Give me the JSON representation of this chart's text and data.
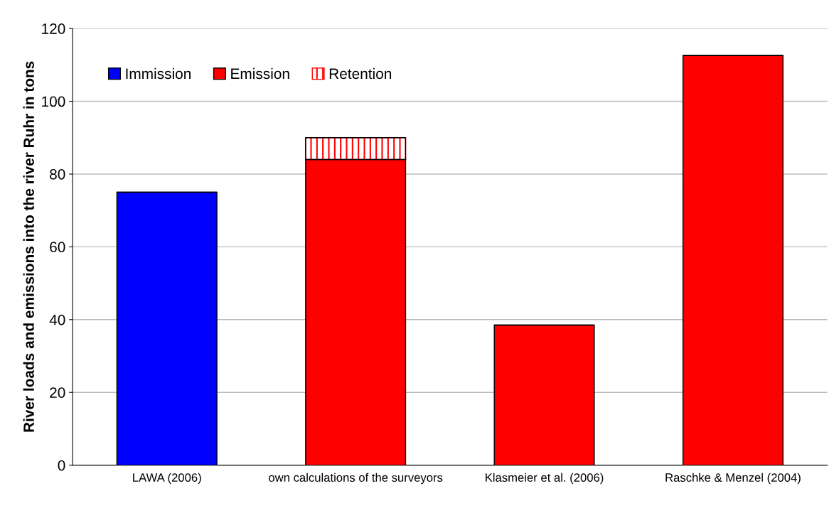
{
  "chart_data": {
    "type": "bar",
    "stacked": true,
    "ylabel": "River loads and emissions into the river Ruhr in tons",
    "categories": [
      "LAWA (2006)",
      "own calculations of the surveyors",
      "Klasmeier et al. (2006)",
      "Raschke & Menzel (2004)"
    ],
    "series": [
      {
        "name": "Immission",
        "color": "#0000ff",
        "values": [
          75,
          null,
          null,
          null
        ]
      },
      {
        "name": "Emission",
        "color": "#ff0000",
        "values": [
          null,
          84,
          38.5,
          112.6
        ]
      },
      {
        "name": "Retention",
        "color": "#ff0000",
        "values": [
          null,
          6,
          null,
          null
        ]
      }
    ],
    "ylim": [
      0,
      120
    ],
    "yticks": [
      0,
      20,
      40,
      60,
      80,
      100,
      120
    ],
    "grid": "y",
    "legend": "top left"
  }
}
